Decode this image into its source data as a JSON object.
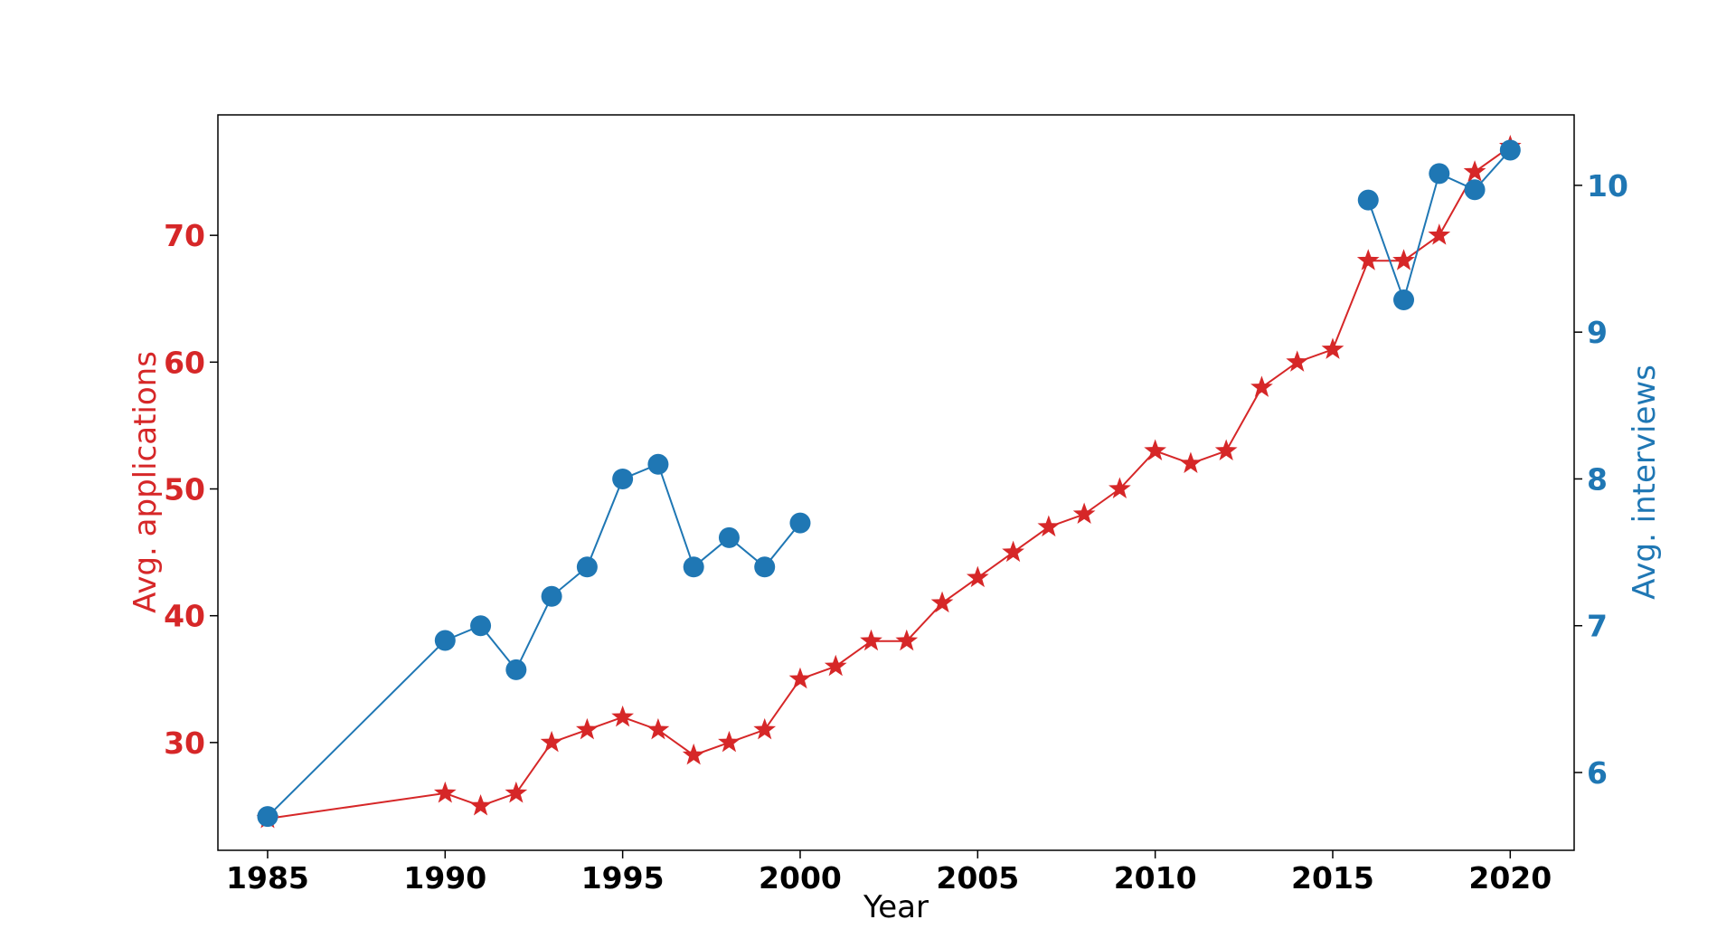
{
  "chart_data": {
    "type": "line",
    "title": "",
    "xlabel": "Year",
    "ylabel_left": "Avg. applications",
    "ylabel_right": "Avg. interviews",
    "xlim": [
      1983.6,
      2021.8
    ],
    "ylim_left": [
      21.5,
      79.5
    ],
    "ylim_right": [
      5.47,
      10.48
    ],
    "x_ticks": [
      1985,
      1990,
      1995,
      2000,
      2005,
      2010,
      2015,
      2020
    ],
    "y_ticks_left": [
      30,
      40,
      50,
      60,
      70
    ],
    "y_ticks_right": [
      6,
      7,
      8,
      9,
      10
    ],
    "grid": false,
    "legend": "none",
    "series": [
      {
        "axis": "left",
        "color": "#d62728",
        "marker": "star",
        "points": [
          [
            1985,
            24
          ],
          [
            1990,
            26
          ],
          [
            1991,
            25
          ],
          [
            1992,
            26
          ],
          [
            1993,
            30
          ],
          [
            1994,
            31
          ],
          [
            1995,
            32
          ],
          [
            1996,
            31
          ],
          [
            1997,
            29
          ],
          [
            1998,
            30
          ],
          [
            1999,
            31
          ],
          [
            2000,
            35
          ],
          [
            2001,
            36
          ],
          [
            2002,
            38
          ],
          [
            2003,
            38
          ],
          [
            2004,
            41
          ],
          [
            2005,
            43
          ],
          [
            2006,
            45
          ],
          [
            2007,
            47
          ],
          [
            2008,
            48
          ],
          [
            2009,
            50
          ],
          [
            2010,
            53
          ],
          [
            2011,
            52
          ],
          [
            2012,
            53
          ],
          [
            2013,
            58
          ],
          [
            2014,
            60
          ],
          [
            2015,
            61
          ],
          [
            2016,
            68
          ],
          [
            2017,
            68
          ],
          [
            2018,
            70
          ],
          [
            2019,
            75
          ],
          [
            2020,
            77
          ]
        ]
      },
      {
        "axis": "right",
        "color": "#1f77b4",
        "marker": "circle",
        "points": [
          [
            1985,
            5.7
          ],
          [
            1990,
            6.9
          ],
          [
            1991,
            7.0
          ],
          [
            1992,
            6.7
          ],
          [
            1993,
            7.2
          ],
          [
            1994,
            7.4
          ],
          [
            1995,
            8.0
          ],
          [
            1996,
            8.1
          ],
          [
            1997,
            7.4
          ],
          [
            1998,
            7.6
          ],
          [
            1999,
            7.4
          ],
          [
            2000,
            7.7
          ]
        ]
      },
      {
        "axis": "right",
        "color": "#1f77b4",
        "marker": "circle",
        "points": [
          [
            2016,
            9.9
          ],
          [
            2017,
            9.22
          ],
          [
            2018,
            10.08
          ],
          [
            2019,
            9.97
          ],
          [
            2020,
            10.24
          ]
        ]
      }
    ]
  }
}
